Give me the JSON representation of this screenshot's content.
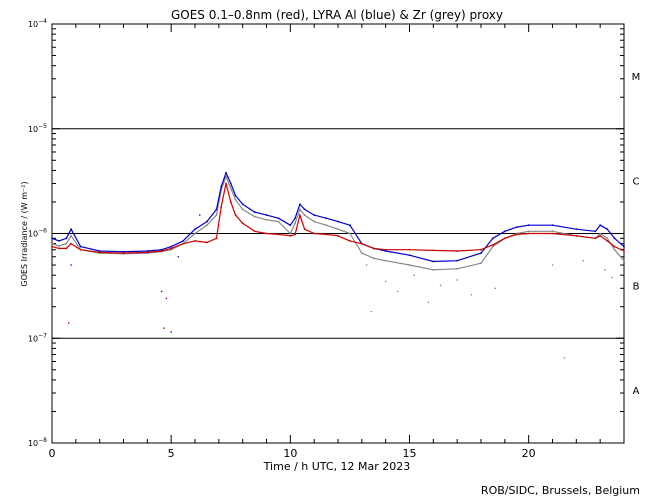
{
  "chart_data": {
    "type": "scatter",
    "title": "GOES 0.1–0.8nm (red), LYRA Al (blue) & Zr (grey) proxy",
    "xlabel": "Time / h UTC, 12 Mar 2023",
    "ylabel": "GOES Irradiance / (W m⁻²)",
    "xlim": [
      0,
      24
    ],
    "ylim": [
      1e-08,
      0.0001
    ],
    "yscale": "log",
    "x_ticks": [
      0,
      5,
      10,
      15,
      20
    ],
    "y_ticks": [
      {
        "base": "10",
        "exp": "−8",
        "value": 1e-08
      },
      {
        "base": "10",
        "exp": "−7",
        "value": 1e-07
      },
      {
        "base": "10",
        "exp": "−6",
        "value": 1e-06
      },
      {
        "base": "10",
        "exp": "−5",
        "value": 1e-05
      },
      {
        "base": "10",
        "exp": "−4",
        "value": 0.0001
      }
    ],
    "flare_class_lines": [
      1e-07,
      1e-06,
      1e-05
    ],
    "flare_classes": [
      {
        "label": "A",
        "value": 3.2e-08
      },
      {
        "label": "B",
        "value": 3.2e-07
      },
      {
        "label": "C",
        "value": 3.2e-06
      },
      {
        "label": "M",
        "value": 3.2e-05
      }
    ],
    "series": [
      {
        "name": "GOES 0.1–0.8nm",
        "color": "#cc0000",
        "x": [
          0,
          0.3,
          0.6,
          0.8,
          1.2,
          2,
          3,
          4,
          4.6,
          5,
          5.5,
          6,
          6.5,
          6.9,
          7.1,
          7.3,
          7.5,
          7.7,
          8,
          8.5,
          9,
          9.5,
          10,
          10.2,
          10.4,
          10.6,
          11,
          11.5,
          12,
          12.5,
          13,
          13.5,
          14,
          15,
          16,
          17,
          18,
          18.5,
          19,
          19.5,
          20,
          21,
          22,
          22.8,
          23,
          23.3,
          23.6,
          24
        ],
        "y": [
          7.5e-07,
          7.2e-07,
          7.2e-07,
          8e-07,
          7e-07,
          6.6e-07,
          6.5e-07,
          6.6e-07,
          6.8e-07,
          7.2e-07,
          8e-07,
          8.5e-07,
          8.2e-07,
          9e-07,
          1.8e-06,
          3e-06,
          2e-06,
          1.5e-06,
          1.25e-06,
          1.05e-06,
          1e-06,
          9.8e-07,
          9.5e-07,
          9.8e-07,
          1.5e-06,
          1.1e-06,
          1e-06,
          9.8e-07,
          9.5e-07,
          8.5e-07,
          8e-07,
          7.2e-07,
          7e-07,
          7e-07,
          6.9e-07,
          6.8e-07,
          7e-07,
          7.8e-07,
          9e-07,
          9.8e-07,
          1e-06,
          1e-06,
          9.5e-07,
          9e-07,
          9.5e-07,
          8.5e-07,
          7.5e-07,
          6.8e-07
        ]
      },
      {
        "name": "LYRA Al proxy",
        "color": "#0000cc",
        "x": [
          0,
          0.3,
          0.6,
          0.8,
          1.2,
          2,
          3,
          4,
          4.6,
          5,
          5.5,
          6,
          6.5,
          6.9,
          7.1,
          7.3,
          7.5,
          7.7,
          8,
          8.5,
          9,
          9.5,
          10,
          10.2,
          10.4,
          10.6,
          11,
          11.5,
          12,
          12.5,
          13,
          13.5,
          14,
          15,
          16,
          17,
          18,
          18.5,
          19,
          19.5,
          20,
          21,
          22,
          22.8,
          23,
          23.3,
          23.6,
          24
        ],
        "y": [
          9e-07,
          8.5e-07,
          9e-07,
          1.1e-06,
          7.5e-07,
          6.8e-07,
          6.7e-07,
          6.8e-07,
          7e-07,
          7.5e-07,
          8.5e-07,
          1.1e-06,
          1.3e-06,
          1.7e-06,
          2.8e-06,
          3.8e-06,
          3e-06,
          2.3e-06,
          1.9e-06,
          1.6e-06,
          1.5e-06,
          1.4e-06,
          1.2e-06,
          1.4e-06,
          1.9e-06,
          1.7e-06,
          1.5e-06,
          1.4e-06,
          1.3e-06,
          1.2e-06,
          8e-07,
          7.2e-07,
          6.8e-07,
          6.2e-07,
          5.4e-07,
          5.5e-07,
          6.5e-07,
          9e-07,
          1.05e-06,
          1.15e-06,
          1.2e-06,
          1.2e-06,
          1.1e-06,
          1.05e-06,
          1.2e-06,
          1.1e-06,
          9e-07,
          7.5e-07
        ]
      },
      {
        "name": "LYRA Zr proxy",
        "color": "#888888",
        "x": [
          0,
          0.3,
          0.6,
          0.8,
          1.2,
          2,
          3,
          4,
          4.6,
          5,
          5.5,
          6,
          6.5,
          6.9,
          7.1,
          7.3,
          7.5,
          7.7,
          8,
          8.5,
          9,
          9.5,
          10,
          10.2,
          10.4,
          10.6,
          11,
          11.5,
          12,
          12.5,
          13,
          13.5,
          14,
          15,
          16,
          17,
          18,
          18.5,
          19,
          19.5,
          20,
          21,
          22,
          22.8,
          23,
          23.3,
          23.6,
          24
        ],
        "y": [
          8e-07,
          7.6e-07,
          8e-07,
          9.5e-07,
          7e-07,
          6.5e-07,
          6.4e-07,
          6.5e-07,
          6.7e-07,
          7e-07,
          8e-07,
          1e-06,
          1.2e-06,
          1.5e-06,
          2.6e-06,
          3.5e-06,
          2.7e-06,
          2.1e-06,
          1.7e-06,
          1.45e-06,
          1.35e-06,
          1.3e-06,
          1e-06,
          1.25e-06,
          1.7e-06,
          1.5e-06,
          1.3e-06,
          1.2e-06,
          1.1e-06,
          1e-06,
          6.5e-07,
          5.8e-07,
          5.5e-07,
          5e-07,
          4.5e-07,
          4.6e-07,
          5.2e-07,
          7.5e-07,
          9e-07,
          1e-06,
          1.05e-06,
          1.05e-06,
          9.5e-07,
          9e-07,
          1e-06,
          9e-07,
          7e-07,
          5.5e-07
        ]
      }
    ],
    "outliers": [
      {
        "x": 0.7,
        "y": 1.4e-07,
        "color": "#cc0000"
      },
      {
        "x": 0.8,
        "y": 5e-07,
        "color": "#0000cc"
      },
      {
        "x": 4.6,
        "y": 2.8e-07,
        "color": "#0000cc"
      },
      {
        "x": 4.8,
        "y": 2.4e-07,
        "color": "#cc0000"
      },
      {
        "x": 4.7,
        "y": 1.25e-07,
        "color": "#cc0000"
      },
      {
        "x": 5.0,
        "y": 1.15e-07,
        "color": "#0000cc"
      },
      {
        "x": 5.3,
        "y": 6e-07,
        "color": "#0000cc"
      },
      {
        "x": 6.2,
        "y": 1.5e-06,
        "color": "#0000cc"
      },
      {
        "x": 13.2,
        "y": 5e-07,
        "color": "#888888"
      },
      {
        "x": 13.4,
        "y": 1.8e-07,
        "color": "#888888"
      },
      {
        "x": 14.0,
        "y": 3.5e-07,
        "color": "#888888"
      },
      {
        "x": 14.5,
        "y": 2.8e-07,
        "color": "#888888"
      },
      {
        "x": 15.2,
        "y": 4e-07,
        "color": "#888888"
      },
      {
        "x": 15.8,
        "y": 2.2e-07,
        "color": "#888888"
      },
      {
        "x": 16.3,
        "y": 3.2e-07,
        "color": "#888888"
      },
      {
        "x": 17.0,
        "y": 3.6e-07,
        "color": "#888888"
      },
      {
        "x": 17.6,
        "y": 2.6e-07,
        "color": "#888888"
      },
      {
        "x": 18.6,
        "y": 3e-07,
        "color": "#888888"
      },
      {
        "x": 21.5,
        "y": 6.5e-08,
        "color": "#888888"
      },
      {
        "x": 21.0,
        "y": 5e-07,
        "color": "#888888"
      },
      {
        "x": 22.3,
        "y": 5.5e-07,
        "color": "#888888"
      },
      {
        "x": 23.2,
        "y": 4.5e-07,
        "color": "#888888"
      },
      {
        "x": 23.5,
        "y": 3.8e-07,
        "color": "#888888"
      }
    ],
    "credit": "ROB/SIDC, Brussels, Belgium"
  }
}
